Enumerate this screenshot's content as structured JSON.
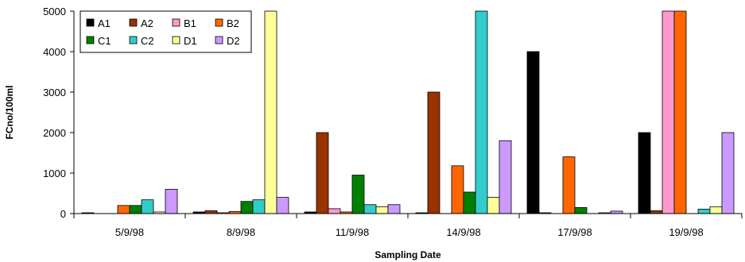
{
  "chart_data": {
    "type": "bar",
    "xlabel": "Sampling Date",
    "ylabel": "FCno/100ml",
    "ylim": [
      0,
      5000
    ],
    "yticks": [
      "0",
      "1000",
      "2000",
      "3000",
      "4000",
      "5000"
    ],
    "categories": [
      "5/9/98",
      "8/9/98",
      "11/9/98",
      "14/9/98",
      "17/9/98",
      "19/9/98"
    ],
    "legend_position": "top-left",
    "grid": false,
    "series": [
      {
        "name": "A1",
        "color": "#000000",
        "values": [
          20,
          40,
          40,
          20,
          4000,
          2000
        ]
      },
      {
        "name": "A2",
        "color": "#993300",
        "values": [
          0,
          70,
          2000,
          3000,
          20,
          70
        ]
      },
      {
        "name": "B1",
        "color": "#ff99cc",
        "values": [
          0,
          20,
          120,
          0,
          0,
          5000
        ]
      },
      {
        "name": "B2",
        "color": "#ff6600",
        "values": [
          200,
          50,
          40,
          1180,
          1400,
          5000
        ]
      },
      {
        "name": "C1",
        "color": "#008000",
        "values": [
          200,
          300,
          950,
          530,
          150,
          0
        ]
      },
      {
        "name": "C2",
        "color": "#33cccc",
        "values": [
          340,
          340,
          220,
          5000,
          0,
          110
        ]
      },
      {
        "name": "D1",
        "color": "#ffff99",
        "values": [
          40,
          5000,
          170,
          400,
          20,
          170
        ]
      },
      {
        "name": "D2",
        "color": "#cc99ff",
        "values": [
          600,
          400,
          220,
          1800,
          60,
          2000
        ]
      }
    ]
  }
}
